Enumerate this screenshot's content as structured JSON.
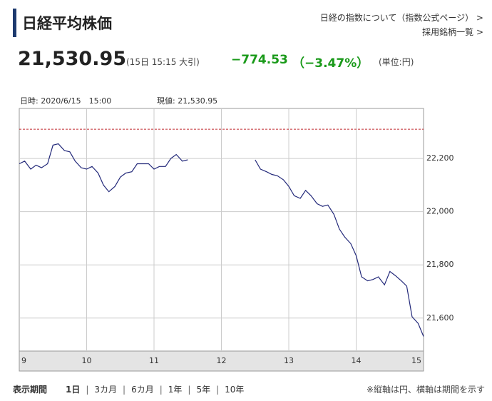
{
  "header": {
    "title": "日経平均株価",
    "links": [
      "日経の指数について（指数公式ページ） >",
      "採用銘柄一覧 >"
    ]
  },
  "quote": {
    "price": "21,530.95",
    "time_note": "(15日 15:15 大引)",
    "change": "−774.53",
    "change_pct": "（−3.47%）",
    "unit": "(単位:円)"
  },
  "chart_data": {
    "type": "line",
    "annotations": [
      "日時: 2020/6/15　15:00",
      "現値: 21,530.95"
    ],
    "x": [
      9.0,
      9.08,
      9.17,
      9.25,
      9.33,
      9.42,
      9.5,
      9.58,
      9.67,
      9.75,
      9.83,
      9.92,
      10.0,
      10.08,
      10.17,
      10.25,
      10.33,
      10.42,
      10.5,
      10.58,
      10.67,
      10.75,
      10.83,
      10.92,
      11.0,
      11.08,
      11.17,
      11.25,
      11.33,
      11.42,
      11.5,
      12.0,
      12.5,
      12.58,
      12.67,
      12.75,
      12.83,
      12.92,
      13.0,
      13.08,
      13.17,
      13.25,
      13.33,
      13.42,
      13.5,
      13.58,
      13.67,
      13.75,
      13.83,
      13.92,
      14.0,
      14.08,
      14.17,
      14.25,
      14.33,
      14.42,
      14.5,
      14.58,
      14.67,
      14.75,
      14.83,
      14.92,
      15.0
    ],
    "series": [
      {
        "color": "#23297a",
        "values": [
          22180,
          22190,
          22160,
          22175,
          22165,
          22180,
          22250,
          22255,
          22230,
          22225,
          22190,
          22165,
          22160,
          22170,
          22145,
          22100,
          22075,
          22095,
          22130,
          22145,
          22150,
          22180,
          22180,
          22180,
          22160,
          22170,
          22170,
          22200,
          22215,
          22190,
          22195,
          null,
          22195,
          22160,
          22150,
          22140,
          22135,
          22120,
          22095,
          22060,
          22050,
          22080,
          22060,
          22030,
          22020,
          22025,
          21990,
          21935,
          21905,
          21880,
          21835,
          21755,
          21740,
          21745,
          21755,
          21725,
          21775,
          21760,
          21740,
          21720,
          21605,
          21580,
          21530.95
        ]
      }
    ],
    "reference_line": {
      "value": 22310,
      "color": "#c0272d"
    },
    "xlim": [
      9,
      15
    ],
    "xticks": [
      9,
      10,
      11,
      12,
      13,
      14,
      15
    ],
    "ylim": [
      21476,
      22388
    ],
    "yticks": [
      {
        "value": 21600,
        "label": "21,600"
      },
      {
        "value": 21800,
        "label": "21,800"
      },
      {
        "value": 22000,
        "label": "22,000"
      },
      {
        "value": 22200,
        "label": "22,200"
      }
    ],
    "grid": true
  },
  "footer": {
    "label": "表示期間",
    "periods": [
      "1日",
      "3カ月",
      "6カ月",
      "1年",
      "5年",
      "10年"
    ],
    "note": "※縦軸は円、横軸は期間を示す"
  }
}
